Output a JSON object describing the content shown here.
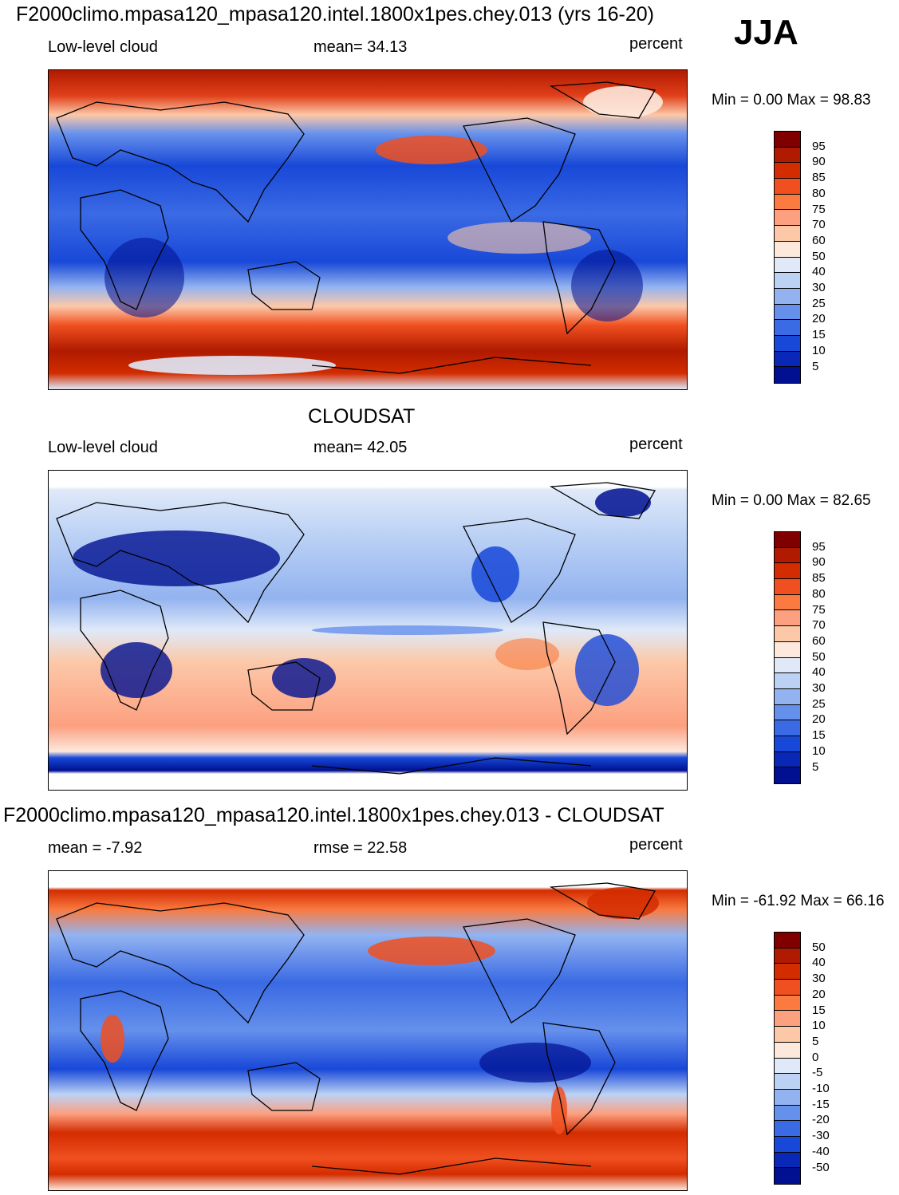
{
  "season": "JJA",
  "panels": [
    {
      "id": "model",
      "header": "F2000climo.mpasa120_mpasa120.intel.1800x1pes.chey.013 (yrs 16-20)",
      "left_label": "Low-level cloud",
      "center_label": "mean=  34.13",
      "units": "percent",
      "minmax": "Min =    0.00 Max =  98.83",
      "colorbar": {
        "labels": [
          "95",
          "90",
          "85",
          "80",
          "75",
          "70",
          "60",
          "50",
          "40",
          "30",
          "25",
          "20",
          "15",
          "10",
          "5"
        ],
        "colors": [
          "#800000",
          "#b01a00",
          "#d32c00",
          "#f05020",
          "#fa7a40",
          "#fca080",
          "#fcc8a8",
          "#fde8dc",
          "#dfe9f8",
          "#bcd2f5",
          "#93b3f0",
          "#6590ec",
          "#3a6ae4",
          "#1848d8",
          "#0a28b8",
          "#001090"
        ]
      }
    },
    {
      "id": "obs",
      "header": "CLOUDSAT",
      "left_label": "Low-level cloud",
      "center_label": "mean=  42.05",
      "units": "percent",
      "minmax": "Min =    0.00 Max =  82.65",
      "colorbar": {
        "labels": [
          "95",
          "90",
          "85",
          "80",
          "75",
          "70",
          "60",
          "50",
          "40",
          "30",
          "25",
          "20",
          "15",
          "10",
          "5"
        ],
        "colors": [
          "#800000",
          "#b01a00",
          "#d32c00",
          "#f05020",
          "#fa7a40",
          "#fca080",
          "#fcc8a8",
          "#fde8dc",
          "#dfe9f8",
          "#bcd2f5",
          "#93b3f0",
          "#6590ec",
          "#3a6ae4",
          "#1848d8",
          "#0a28b8",
          "#001090"
        ]
      }
    },
    {
      "id": "diff",
      "header": "F2000climo.mpasa120_mpasa120.intel.1800x1pes.chey.013 - CLOUDSAT",
      "left_label": "mean =  -7.92",
      "center_label": "rmse =  22.58",
      "units": "percent",
      "minmax": "Min = -61.92 Max =  66.16",
      "colorbar": {
        "labels": [
          "50",
          "40",
          "30",
          "20",
          "15",
          "10",
          "5",
          "0",
          "-5",
          "-10",
          "-15",
          "-20",
          "-30",
          "-40",
          "-50"
        ],
        "colors": [
          "#800000",
          "#b01a00",
          "#d32c00",
          "#f05020",
          "#fa7a40",
          "#fca080",
          "#fcc8a8",
          "#fde8dc",
          "#dfe9f8",
          "#bcd2f5",
          "#93b3f0",
          "#6590ec",
          "#3a6ae4",
          "#1848d8",
          "#0a28b8",
          "#001090"
        ]
      }
    }
  ]
}
